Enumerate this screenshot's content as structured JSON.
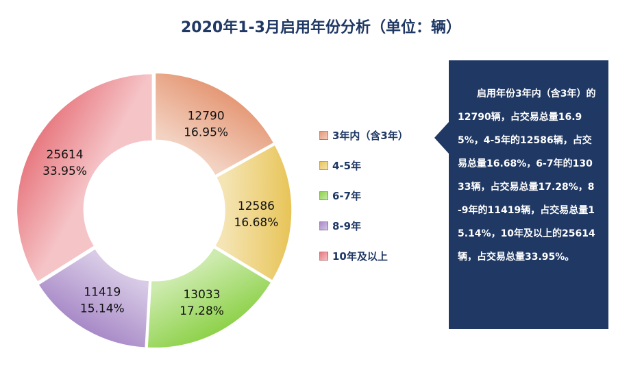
{
  "chart_data": {
    "type": "pie",
    "title": "2020年1-3月启用年份分析（单位：辆）",
    "categories": [
      "3年内（含3年）",
      "4-5年",
      "6-7年",
      "8-9年",
      "10年及以上"
    ],
    "values": [
      12790,
      12586,
      13033,
      11419,
      25614
    ],
    "percent_labels": [
      "16.95%",
      "16.68%",
      "17.28%",
      "15.14%",
      "33.95%"
    ],
    "value_labels": [
      "12790",
      "12586",
      "13033",
      "11419",
      "25614"
    ],
    "colors": [
      "#e59a78",
      "#e8c55a",
      "#8fd24c",
      "#a98bc8",
      "#e87b82"
    ],
    "donut": true,
    "legend_position": "right"
  },
  "note": {
    "text": "启用年份3年内（含3年）的12790辆，占交易总量16.95%，4-5年的12586辆，占交易总量16.68%，6-7年的13033辆，占交易总量17.28%，8-9年的11419辆，占交易总量15.14%，10年及以上的25614辆，占交易总量33.95%。",
    "background": "#1f3864"
  }
}
